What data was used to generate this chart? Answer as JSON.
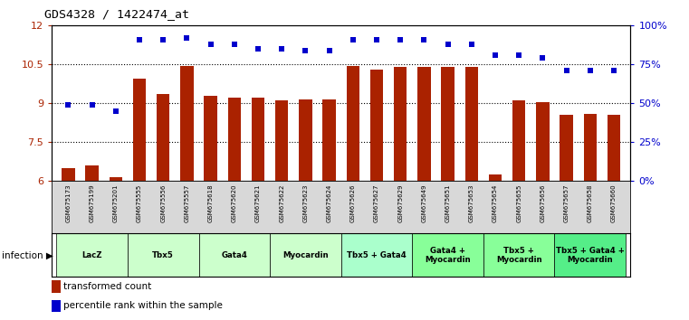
{
  "title": "GDS4328 / 1422474_at",
  "samples": [
    "GSM675173",
    "GSM675199",
    "GSM675201",
    "GSM675555",
    "GSM675556",
    "GSM675557",
    "GSM675618",
    "GSM675620",
    "GSM675621",
    "GSM675622",
    "GSM675623",
    "GSM675624",
    "GSM675626",
    "GSM675627",
    "GSM675629",
    "GSM675649",
    "GSM675651",
    "GSM675653",
    "GSM675654",
    "GSM675655",
    "GSM675656",
    "GSM675657",
    "GSM675658",
    "GSM675660"
  ],
  "bar_values": [
    6.5,
    6.6,
    6.15,
    9.95,
    9.35,
    10.45,
    9.3,
    9.2,
    9.2,
    9.1,
    9.15,
    9.15,
    10.45,
    10.3,
    10.4,
    10.4,
    10.4,
    10.42,
    6.25,
    9.1,
    9.05,
    8.55,
    8.6,
    8.55
  ],
  "percentile_values": [
    49,
    49,
    45,
    91,
    91,
    92,
    88,
    88,
    85,
    85,
    84,
    84,
    91,
    91,
    91,
    91,
    88,
    88,
    81,
    81,
    79,
    71,
    71,
    71
  ],
  "ylim_left": [
    6,
    12
  ],
  "ylim_right": [
    0,
    100
  ],
  "yticks_left": [
    6,
    7.5,
    9,
    10.5,
    12
  ],
  "yticks_right": [
    0,
    25,
    50,
    75,
    100
  ],
  "ytick_labels_right": [
    "0%",
    "25%",
    "50%",
    "75%",
    "100%"
  ],
  "bar_color": "#AA2200",
  "dot_color": "#0000CC",
  "groups": [
    {
      "label": "LacZ",
      "start": 0,
      "end": 3,
      "color": "#ccffcc"
    },
    {
      "label": "Tbx5",
      "start": 3,
      "end": 6,
      "color": "#ccffcc"
    },
    {
      "label": "Gata4",
      "start": 6,
      "end": 9,
      "color": "#ccffcc"
    },
    {
      "label": "Myocardin",
      "start": 9,
      "end": 12,
      "color": "#ccffcc"
    },
    {
      "label": "Tbx5 + Gata4",
      "start": 12,
      "end": 15,
      "color": "#aaffcc"
    },
    {
      "label": "Gata4 +\nMyocardin",
      "start": 15,
      "end": 18,
      "color": "#88ff99"
    },
    {
      "label": "Tbx5 +\nMyocardin",
      "start": 18,
      "end": 21,
      "color": "#88ff99"
    },
    {
      "label": "Tbx5 + Gata4 +\nMyocardin",
      "start": 21,
      "end": 24,
      "color": "#55ee88"
    }
  ],
  "infection_label": "infection",
  "legend_bar_label": "transformed count",
  "legend_dot_label": "percentile rank within the sample"
}
